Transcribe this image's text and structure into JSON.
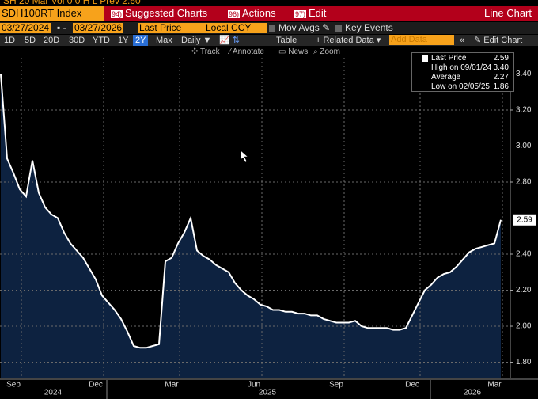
{
  "top_strip": "SH 20 Mar  Vol 0 0  H  L  Prev 2.60",
  "header": {
    "ticker": "SDH100RT Index",
    "menus": [
      {
        "num": "94)",
        "label": "Suggested Charts"
      },
      {
        "num": "96)",
        "label": "Actions"
      },
      {
        "num": "97)",
        "label": "Edit"
      }
    ],
    "chart_type_label": "Line Chart"
  },
  "controls": {
    "start_date": "03/27/2024",
    "end_date": "03/27/2026",
    "field": "Last Price",
    "currency": "Local CCY",
    "mov_avgs": "Mov Avgs",
    "key_events": "Key Events"
  },
  "periods": [
    "1D",
    "5D",
    "20D",
    "30D",
    "YTD",
    "1Y",
    "2Y",
    "Max"
  ],
  "frequency": "Daily ▼",
  "table": "Table",
  "related_data": "+ Related Data ▾",
  "add_data": "Add Data",
  "edit_chart": "Edit Chart",
  "tools": [
    "Track",
    "Annotate",
    "News",
    "Zoom"
  ],
  "chart_data": {
    "type": "line",
    "categories": [
      null,
      null,
      "Sep",
      null,
      null,
      null,
      null,
      null,
      null,
      null,
      null,
      null,
      null,
      null,
      null,
      "Dec",
      null,
      null,
      null,
      null,
      null,
      null,
      null,
      null,
      null,
      null,
      null,
      "Mar",
      null,
      null,
      null,
      null,
      null,
      null,
      null,
      null,
      null,
      null,
      null,
      null,
      "Jun",
      null,
      null,
      null,
      null,
      null,
      null,
      null,
      null,
      null,
      null,
      null,
      null,
      "Sep",
      null,
      null,
      null,
      null,
      null,
      null,
      null,
      null,
      null,
      null,
      null,
      "Dec",
      null,
      null,
      null,
      null,
      null,
      null,
      null,
      null,
      null,
      null,
      null,
      null,
      "Mar",
      null
    ],
    "year_labels": [
      "2024",
      "2025",
      "2026"
    ],
    "series": [
      {
        "name": "Last Price",
        "color": "#ffffff",
        "area_color": "#0d2240",
        "values": [
          3.4,
          2.93,
          2.85,
          2.76,
          2.72,
          2.92,
          2.74,
          2.66,
          2.62,
          2.6,
          2.52,
          2.46,
          2.42,
          2.38,
          2.32,
          2.26,
          2.17,
          2.13,
          2.09,
          2.04,
          1.97,
          1.89,
          1.88,
          1.88,
          1.89,
          1.9,
          2.36,
          2.38,
          2.46,
          2.52,
          2.6,
          2.42,
          2.39,
          2.37,
          2.34,
          2.32,
          2.3,
          2.24,
          2.2,
          2.17,
          2.15,
          2.12,
          2.11,
          2.09,
          2.09,
          2.08,
          2.08,
          2.07,
          2.07,
          2.06,
          2.06,
          2.04,
          2.03,
          2.02,
          2.02,
          2.02,
          2.03,
          2.0,
          1.99,
          1.99,
          1.99,
          1.99,
          1.98,
          1.98,
          1.99,
          2.06,
          2.13,
          2.2,
          2.23,
          2.27,
          2.29,
          2.3,
          2.33,
          2.37,
          2.41,
          2.43,
          2.44,
          2.45,
          2.46,
          2.59
        ]
      }
    ],
    "legend_stats": [
      {
        "label": "High on 09/01/24",
        "value": "3.40"
      },
      {
        "label": "Average",
        "value": "2.27"
      },
      {
        "label": "Low on 02/05/25",
        "value": "1.86"
      }
    ],
    "ylim": [
      1.71,
      3.49
    ],
    "yticks": [
      {
        "value": 1.8,
        "label": "1.80"
      },
      {
        "value": 2.0,
        "label": "2.00"
      },
      {
        "value": 2.2,
        "label": "2.20"
      },
      {
        "value": 2.4,
        "label": "2.40"
      },
      {
        "value": 2.6,
        "label": "2.60"
      },
      {
        "value": 2.8,
        "label": "2.80"
      },
      {
        "value": 3.0,
        "label": "3.00"
      },
      {
        "value": 3.2,
        "label": "3.20"
      },
      {
        "value": 3.4,
        "label": "3.40"
      }
    ],
    "grid": true
  }
}
